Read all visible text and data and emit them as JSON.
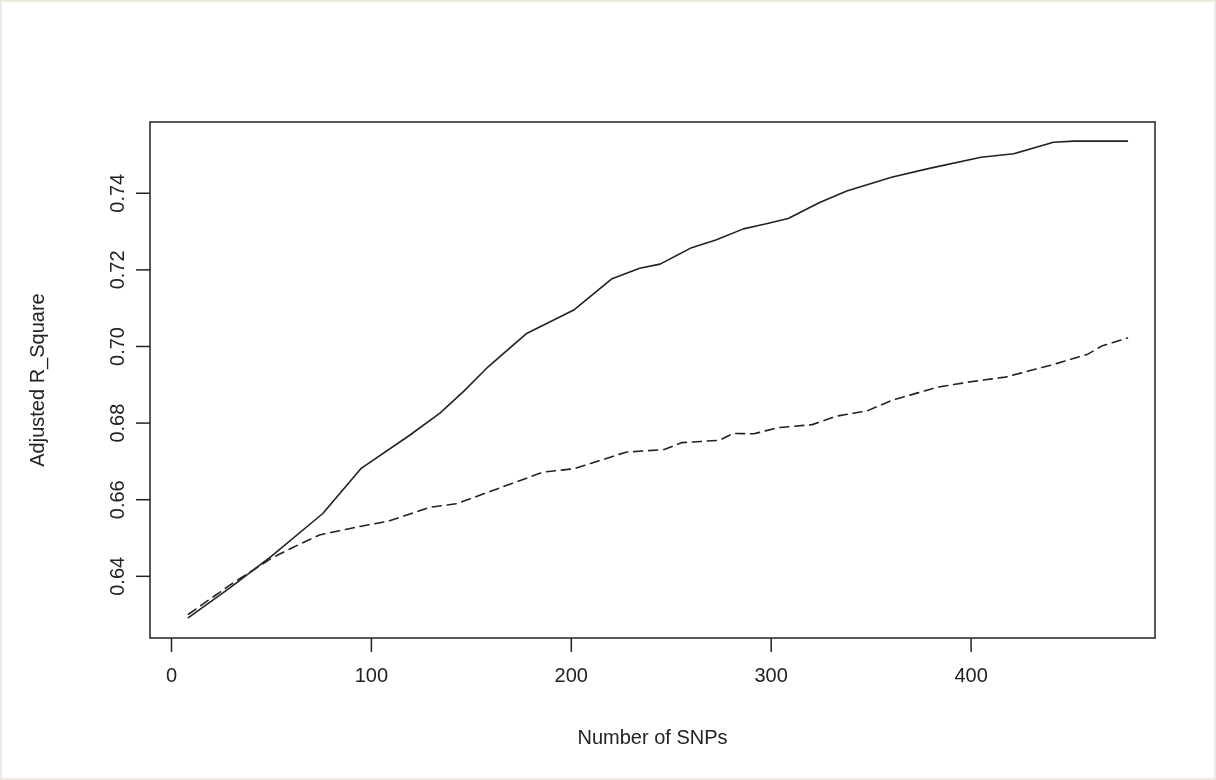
{
  "chart_data": {
    "type": "line",
    "xlabel": "Number of SNPs",
    "ylabel": "Adjusted R_Square",
    "xlim": [
      -10.75,
      492
    ],
    "ylim": [
      0.6239,
      0.7586
    ],
    "xticks": [
      0,
      100,
      200,
      300,
      400
    ],
    "yticks": [
      0.64,
      0.66,
      0.68,
      {
        "value": 0.7,
        "label": "0.70"
      },
      0.72,
      0.74
    ],
    "grid": false,
    "marker": "none",
    "series": [
      {
        "color": "#222222",
        "line_style": "solid",
        "x": [
          8.5,
          29.2,
          49.9,
          75.7,
          94.7,
          118.8,
          134.3,
          146.4,
          158.4,
          165.3,
          177.4,
          201.5,
          220.4,
          234.2,
          244.4,
          260.2,
          272.3,
          286.1,
          298.1,
          308.5,
          324.0,
          337.8,
          360.2,
          379.1,
          405.0,
          421.3,
          441.2,
          451.5,
          478.2
        ],
        "values": [
          0.6292,
          0.637,
          0.6452,
          0.6564,
          0.6681,
          0.6767,
          0.6826,
          0.6884,
          0.6947,
          0.6978,
          0.7033,
          0.7096,
          0.7177,
          0.7204,
          0.7215,
          0.7258,
          0.7278,
          0.7307,
          0.7321,
          0.7334,
          0.7375,
          0.7406,
          0.7442,
          0.7465,
          0.7494,
          0.7503,
          0.7533,
          0.7536,
          0.7536
        ]
      },
      {
        "color": "#222222",
        "line_style": "dashed",
        "x": [
          8.5,
          29.2,
          49.9,
          60.2,
          74.0,
          91.2,
          108.5,
          129.1,
          142.9,
          160.1,
          185.9,
          201.5,
          227.3,
          246.5,
          255.1,
          274.0,
          280.9,
          291.3,
          303.3,
          320.5,
          332.6,
          348.1,
          360.2,
          382.6,
          399.8,
          417.1,
          441.2,
          458.4,
          465.3,
          478.2
        ],
        "values": [
          0.6301,
          0.6377,
          0.6447,
          0.6474,
          0.6508,
          0.6527,
          0.6544,
          0.658,
          0.659,
          0.6623,
          0.6672,
          0.6681,
          0.6724,
          0.6731,
          0.6749,
          0.6755,
          0.6773,
          0.6772,
          0.6788,
          0.6796,
          0.6818,
          0.6832,
          0.6859,
          0.6893,
          0.6908,
          0.692,
          0.6953,
          0.698,
          0.7001,
          0.7022
        ]
      }
    ]
  }
}
